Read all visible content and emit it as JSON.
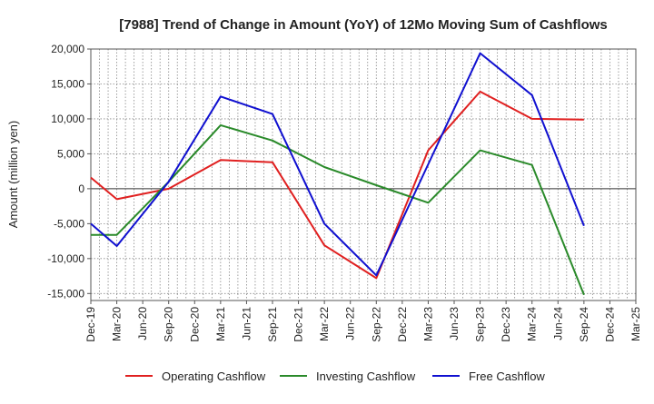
{
  "chart_data": {
    "type": "line",
    "title": "[7988]  Trend of Change in Amount (YoY) of 12Mo Moving Sum of Cashflows",
    "xlabel": "",
    "ylabel": "Amount (million yen)",
    "ylim": [
      -16000,
      20000
    ],
    "yticks": [
      20000,
      15000,
      10000,
      5000,
      0,
      -5000,
      -10000,
      -15000
    ],
    "ytick_labels": [
      "20,000",
      "15,000",
      "10,000",
      "5,000",
      "0",
      "-5,000",
      "-10,000",
      "-15,000"
    ],
    "categories": [
      "Dec-19",
      "Mar-20",
      "Jun-20",
      "Sep-20",
      "Dec-20",
      "Mar-21",
      "Jun-21",
      "Sep-21",
      "Dec-21",
      "Mar-22",
      "Jun-22",
      "Sep-22",
      "Dec-22",
      "Mar-23",
      "Jun-23",
      "Sep-23",
      "Dec-23",
      "Mar-24",
      "Jun-24",
      "Sep-24",
      "Dec-24",
      "Mar-25"
    ],
    "grid": true,
    "legend_position": "bottom",
    "series": [
      {
        "name": "Operating Cashflow",
        "color": "#e02020",
        "values": [
          1600,
          -1500,
          null,
          0,
          null,
          4100,
          null,
          3800,
          null,
          -8100,
          null,
          -12800,
          null,
          5500,
          null,
          13900,
          null,
          10000,
          null,
          9900,
          null,
          null
        ]
      },
      {
        "name": "Investing Cashflow",
        "color": "#2a8a2a",
        "values": [
          -6600,
          -6600,
          null,
          1000,
          null,
          9100,
          null,
          6900,
          null,
          3100,
          null,
          500,
          null,
          -2000,
          null,
          5500,
          null,
          3400,
          null,
          -15200,
          null,
          null
        ]
      },
      {
        "name": "Free Cashflow",
        "color": "#1010d0",
        "values": [
          -5000,
          -8200,
          null,
          1000,
          null,
          13200,
          null,
          10700,
          null,
          -5000,
          null,
          -12400,
          null,
          3500,
          null,
          19400,
          null,
          13400,
          null,
          -5300,
          null,
          null
        ]
      }
    ]
  }
}
